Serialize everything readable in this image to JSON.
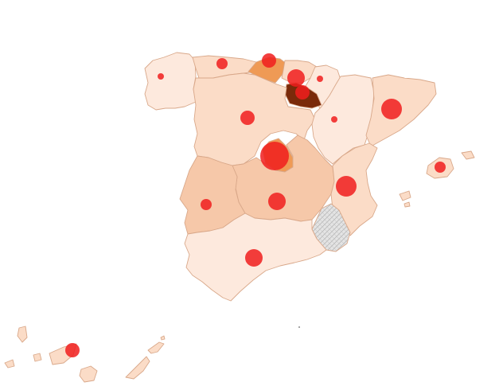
{
  "map": {
    "colors": {
      "lightest": "#fde9dd",
      "light": "#fbdcc7",
      "medium": "#f6c8a9",
      "orange": "#ef9a55",
      "dark": "#7a2a0a",
      "nodata": "#e1e1e1",
      "border": "#d9a88a",
      "bubble": "#f01d1d"
    },
    "regions": [
      {
        "id": "galicia",
        "fill": "lightest",
        "bubble_size": 1
      },
      {
        "id": "asturias",
        "fill": "light",
        "bubble_size": 2
      },
      {
        "id": "cantabria",
        "fill": "orange",
        "bubble_size": 3
      },
      {
        "id": "pais-vasco",
        "fill": "light",
        "bubble_size": 4
      },
      {
        "id": "navarra",
        "fill": "lightest",
        "bubble_size": 1
      },
      {
        "id": "la-rioja",
        "fill": "dark",
        "bubble_size": 3
      },
      {
        "id": "castilla-y-leon",
        "fill": "light",
        "bubble_size": 3
      },
      {
        "id": "aragon",
        "fill": "lightest",
        "bubble_size": 1
      },
      {
        "id": "cataluna",
        "fill": "light",
        "bubble_size": 5
      },
      {
        "id": "madrid",
        "fill": "orange",
        "bubble_size": 7
      },
      {
        "id": "castilla-la-mancha",
        "fill": "medium",
        "bubble_size": 4
      },
      {
        "id": "extremadura",
        "fill": "medium",
        "bubble_size": 2
      },
      {
        "id": "comunidad-valenciana",
        "fill": "light",
        "bubble_size": 5
      },
      {
        "id": "murcia",
        "fill": "nodata",
        "bubble_size": 0
      },
      {
        "id": "andalucia",
        "fill": "lightest",
        "bubble_size": 4
      },
      {
        "id": "baleares",
        "fill": "light",
        "bubble_size": 2
      },
      {
        "id": "canarias",
        "fill": "light",
        "bubble_size": 3
      }
    ]
  }
}
